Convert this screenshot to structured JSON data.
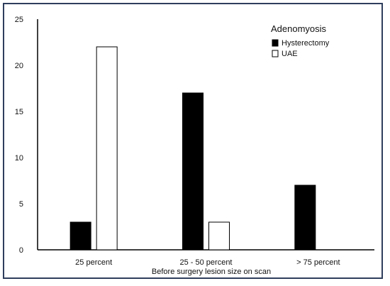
{
  "chart_data": {
    "type": "bar",
    "categories": [
      "25 percent",
      "25 - 50 percent",
      "> 75 percent"
    ],
    "series": [
      {
        "name": "Hysterectomy",
        "values": [
          3,
          17,
          7
        ],
        "color": "#000000"
      },
      {
        "name": "UAE",
        "values": [
          22,
          3,
          0
        ],
        "color": "#ffffff"
      }
    ],
    "xlabel": "Before surgery lesion size on scan",
    "ylabel": "",
    "ylim": [
      0,
      25
    ],
    "yticks": [
      0,
      5,
      10,
      15,
      20,
      25
    ],
    "legend_title": "Adenomyosis",
    "legend_position": "top-right",
    "grid": false
  }
}
